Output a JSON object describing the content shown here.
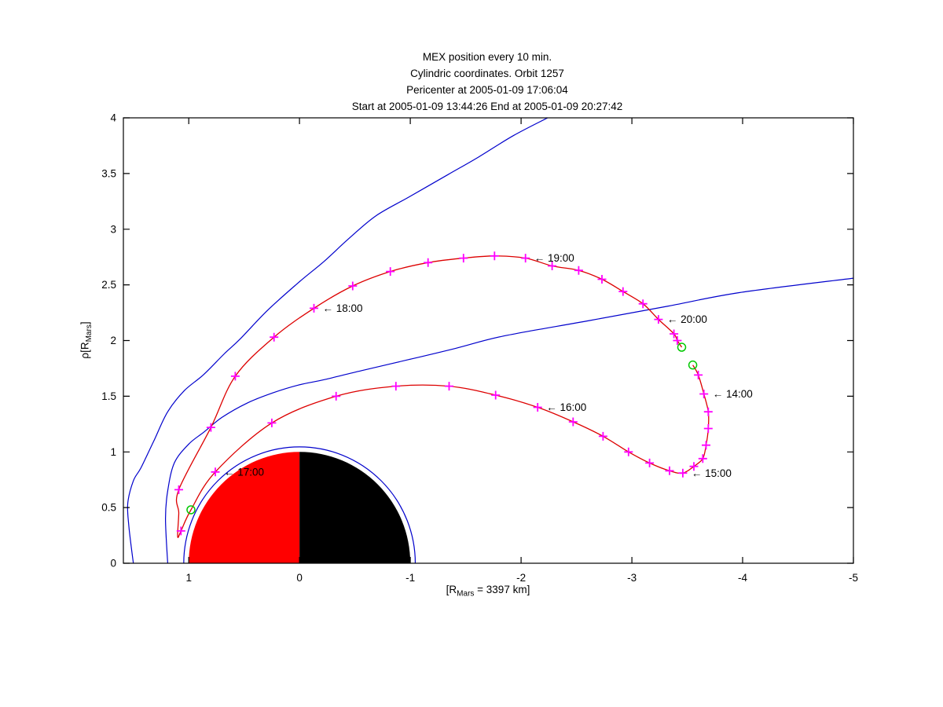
{
  "figure": {
    "title_lines": [
      "MEX position every 10 min.",
      "Cylindric coordinates. Orbit 1257",
      "Pericenter at 2005-01-09 17:06:04",
      "Start at 2005-01-09 13:44:26 End at 2005-01-09 20:27:42"
    ],
    "xlabel": {
      "pre": "[R",
      "sub": "Mars",
      "post": " = 3397 km]"
    },
    "ylabel": {
      "pre": "ρ[R",
      "sub": "Mars",
      "post": "]"
    }
  },
  "chart_data": {
    "type": "line",
    "title": "MEX position every 10 min. Cylindric coordinates. Orbit 1257. Pericenter at 2005-01-09 17:06:04. Start at 2005-01-09 13:44:26 End at 2005-01-09 20:27:42",
    "xlabel": "[R_Mars = 3397 km]",
    "ylabel": "rho [R_Mars]",
    "xlim": [
      1.59,
      -5
    ],
    "ylim": [
      0,
      4
    ],
    "x_ticks": [
      1,
      0,
      -1,
      -2,
      -3,
      -4,
      -5
    ],
    "x_tick_labels": [
      "1",
      "0",
      "-1",
      "-2",
      "-3",
      "-4",
      "-5"
    ],
    "y_ticks": [
      0,
      0.5,
      1,
      1.5,
      2,
      2.5,
      3,
      3.5,
      4
    ],
    "y_tick_labels": [
      "0",
      "0.5",
      "1",
      "1.5",
      "2",
      "2.5",
      "3",
      "3.5",
      "4"
    ],
    "grid": false,
    "colors": {
      "trajectory": "#dd0000",
      "markers": "#ff00ff",
      "boundaries": "#0000cc",
      "endpoints": "#00c800",
      "axes": "#000000",
      "mars_dayside": "#ff0000",
      "mars_nightside": "#000000"
    },
    "mars": {
      "radius": 1.0,
      "halo_radius": 1.045
    },
    "bow_shock": {
      "name": "bow shock",
      "points": [
        [
          1.5,
          0.0
        ],
        [
          1.54,
          0.33
        ],
        [
          1.55,
          0.54
        ],
        [
          1.5,
          0.74
        ],
        [
          1.43,
          0.86
        ],
        [
          1.31,
          1.11
        ],
        [
          1.19,
          1.36
        ],
        [
          1.04,
          1.55
        ],
        [
          0.87,
          1.69
        ],
        [
          0.68,
          1.88
        ],
        [
          0.54,
          2.01
        ],
        [
          0.29,
          2.27
        ],
        [
          0.01,
          2.52
        ],
        [
          -0.22,
          2.71
        ],
        [
          -0.45,
          2.92
        ],
        [
          -0.69,
          3.12
        ],
        [
          -0.99,
          3.29
        ],
        [
          -1.34,
          3.49
        ],
        [
          -1.62,
          3.65
        ],
        [
          -1.93,
          3.84
        ],
        [
          -2.24,
          4.0
        ]
      ]
    },
    "magnetopause": {
      "name": "magnetic pileup boundary",
      "points": [
        [
          1.19,
          0.0
        ],
        [
          1.21,
          0.4
        ],
        [
          1.19,
          0.65
        ],
        [
          1.13,
          0.9
        ],
        [
          1.0,
          1.07
        ],
        [
          0.86,
          1.18
        ],
        [
          0.7,
          1.31
        ],
        [
          0.47,
          1.44
        ],
        [
          0.24,
          1.53
        ],
        [
          0.01,
          1.6
        ],
        [
          -0.23,
          1.65
        ],
        [
          -0.56,
          1.73
        ],
        [
          -0.99,
          1.83
        ],
        [
          -1.41,
          1.93
        ],
        [
          -1.84,
          2.04
        ],
        [
          -2.62,
          2.18
        ],
        [
          -3.33,
          2.31
        ],
        [
          -3.97,
          2.43
        ],
        [
          -5.0,
          2.56
        ]
      ]
    },
    "trajectory": {
      "sample_interval": "10 min",
      "start": {
        "time": "13:44:26",
        "x": -3.55,
        "rho": 1.78
      },
      "end": {
        "time": "20:27:42",
        "x": -3.45,
        "rho": 1.94
      },
      "pericenter": {
        "time": "17:06:04",
        "x": 0.98,
        "rho": 0.48
      },
      "markers": [
        {
          "time": "13:50",
          "x": -3.6,
          "rho": 1.69
        },
        {
          "time": "14:00",
          "x": -3.65,
          "rho": 1.52
        },
        {
          "time": "14:10",
          "x": -3.69,
          "rho": 1.36
        },
        {
          "time": "14:20",
          "x": -3.69,
          "rho": 1.21
        },
        {
          "time": "14:30",
          "x": -3.67,
          "rho": 1.06
        },
        {
          "time": "14:40",
          "x": -3.64,
          "rho": 0.94
        },
        {
          "time": "14:50",
          "x": -3.56,
          "rho": 0.87
        },
        {
          "time": "15:00",
          "x": -3.46,
          "rho": 0.81
        },
        {
          "time": "15:10",
          "x": -3.34,
          "rho": 0.83
        },
        {
          "time": "15:20",
          "x": -3.16,
          "rho": 0.9
        },
        {
          "time": "15:30",
          "x": -2.97,
          "rho": 1.0
        },
        {
          "time": "15:40",
          "x": -2.74,
          "rho": 1.14
        },
        {
          "time": "15:50",
          "x": -2.47,
          "rho": 1.27
        },
        {
          "time": "16:00",
          "x": -2.15,
          "rho": 1.4
        },
        {
          "time": "16:10",
          "x": -1.77,
          "rho": 1.51
        },
        {
          "time": "16:20",
          "x": -1.35,
          "rho": 1.59
        },
        {
          "time": "16:30",
          "x": -0.87,
          "rho": 1.59
        },
        {
          "time": "16:40",
          "x": -0.33,
          "rho": 1.5
        },
        {
          "time": "16:50",
          "x": 0.25,
          "rho": 1.26
        },
        {
          "time": "17:00",
          "x": 0.76,
          "rho": 0.82
        },
        {
          "time": "17:10",
          "x": 1.07,
          "rho": 0.29
        },
        {
          "time": "17:20",
          "x": 1.09,
          "rho": 0.66
        },
        {
          "time": "17:30",
          "x": 0.8,
          "rho": 1.22
        },
        {
          "time": "17:40",
          "x": 0.58,
          "rho": 1.68
        },
        {
          "time": "17:50",
          "x": 0.23,
          "rho": 2.03
        },
        {
          "time": "18:00",
          "x": -0.13,
          "rho": 2.29
        },
        {
          "time": "18:10",
          "x": -0.48,
          "rho": 2.49
        },
        {
          "time": "18:20",
          "x": -0.82,
          "rho": 2.62
        },
        {
          "time": "18:30",
          "x": -1.16,
          "rho": 2.7
        },
        {
          "time": "18:40",
          "x": -1.48,
          "rho": 2.74
        },
        {
          "time": "18:50",
          "x": -1.76,
          "rho": 2.76
        },
        {
          "time": "19:00",
          "x": -2.04,
          "rho": 2.74
        },
        {
          "time": "19:10",
          "x": -2.28,
          "rho": 2.67
        },
        {
          "time": "19:20",
          "x": -2.52,
          "rho": 2.63
        },
        {
          "time": "19:30",
          "x": -2.73,
          "rho": 2.55
        },
        {
          "time": "19:40",
          "x": -2.92,
          "rho": 2.44
        },
        {
          "time": "19:50",
          "x": -3.1,
          "rho": 2.33
        },
        {
          "time": "20:00",
          "x": -3.24,
          "rho": 2.19
        },
        {
          "time": "20:10",
          "x": -3.38,
          "rho": 2.06
        },
        {
          "time": "20:20",
          "x": -3.41,
          "rho": 2.0
        }
      ],
      "path": [
        [
          -3.55,
          1.78
        ],
        [
          -3.6,
          1.69
        ],
        [
          -3.65,
          1.52
        ],
        [
          -3.69,
          1.36
        ],
        [
          -3.69,
          1.21
        ],
        [
          -3.67,
          1.06
        ],
        [
          -3.64,
          0.94
        ],
        [
          -3.56,
          0.87
        ],
        [
          -3.46,
          0.81
        ],
        [
          -3.34,
          0.83
        ],
        [
          -3.16,
          0.9
        ],
        [
          -2.97,
          1.0
        ],
        [
          -2.74,
          1.14
        ],
        [
          -2.47,
          1.27
        ],
        [
          -2.15,
          1.4
        ],
        [
          -1.77,
          1.51
        ],
        [
          -1.35,
          1.59
        ],
        [
          -0.87,
          1.59
        ],
        [
          -0.33,
          1.5
        ],
        [
          0.25,
          1.26
        ],
        [
          0.76,
          0.82
        ],
        [
          0.98,
          0.48
        ],
        [
          1.07,
          0.29
        ],
        [
          1.1,
          0.24
        ],
        [
          1.09,
          0.45
        ],
        [
          1.09,
          0.66
        ],
        [
          0.8,
          1.22
        ],
        [
          0.58,
          1.68
        ],
        [
          0.23,
          2.03
        ],
        [
          -0.13,
          2.29
        ],
        [
          -0.48,
          2.49
        ],
        [
          -0.82,
          2.62
        ],
        [
          -1.16,
          2.7
        ],
        [
          -1.48,
          2.74
        ],
        [
          -1.76,
          2.76
        ],
        [
          -2.04,
          2.74
        ],
        [
          -2.28,
          2.67
        ],
        [
          -2.52,
          2.63
        ],
        [
          -2.73,
          2.55
        ],
        [
          -2.92,
          2.44
        ],
        [
          -3.1,
          2.33
        ],
        [
          -3.24,
          2.19
        ],
        [
          -3.38,
          2.06
        ],
        [
          -3.41,
          2.0
        ],
        [
          -3.45,
          1.94
        ]
      ]
    },
    "annotations": [
      {
        "arrow": "←",
        "label": "14:00"
      },
      {
        "arrow": "←",
        "label": "15:00"
      },
      {
        "arrow": "←",
        "label": "16:00"
      },
      {
        "arrow": "←",
        "label": "17:00"
      },
      {
        "arrow": "←",
        "label": "18:00"
      },
      {
        "arrow": "←",
        "label": "19:00"
      },
      {
        "arrow": "←",
        "label": "20:00"
      }
    ],
    "legend": null
  }
}
